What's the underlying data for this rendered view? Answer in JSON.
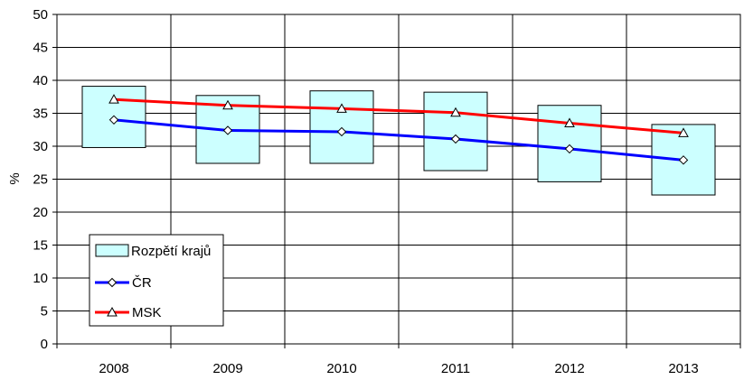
{
  "chart_data": {
    "type": "line",
    "categories": [
      "2008",
      "2009",
      "2010",
      "2011",
      "2012",
      "2013"
    ],
    "ylabel": "%",
    "ylim": [
      0,
      50
    ],
    "yticks": [
      0,
      5,
      10,
      15,
      20,
      25,
      30,
      35,
      40,
      45,
      50
    ],
    "grid": true,
    "legend_position": "bottom-left",
    "range": {
      "name": "Rozpětí krajů",
      "color": "#ccffff",
      "low": [
        29.8,
        27.4,
        27.4,
        26.3,
        24.6,
        22.6
      ],
      "high": [
        39.1,
        37.7,
        38.4,
        38.2,
        36.2,
        33.3
      ]
    },
    "series": [
      {
        "name": "ČR",
        "color": "#0000ff",
        "marker": "diamond",
        "values": [
          34.0,
          32.4,
          32.2,
          31.1,
          29.6,
          27.9
        ]
      },
      {
        "name": "MSK",
        "color": "#ff0000",
        "marker": "triangle",
        "values": [
          37.1,
          36.2,
          35.7,
          35.1,
          33.5,
          32.0
        ]
      }
    ]
  }
}
